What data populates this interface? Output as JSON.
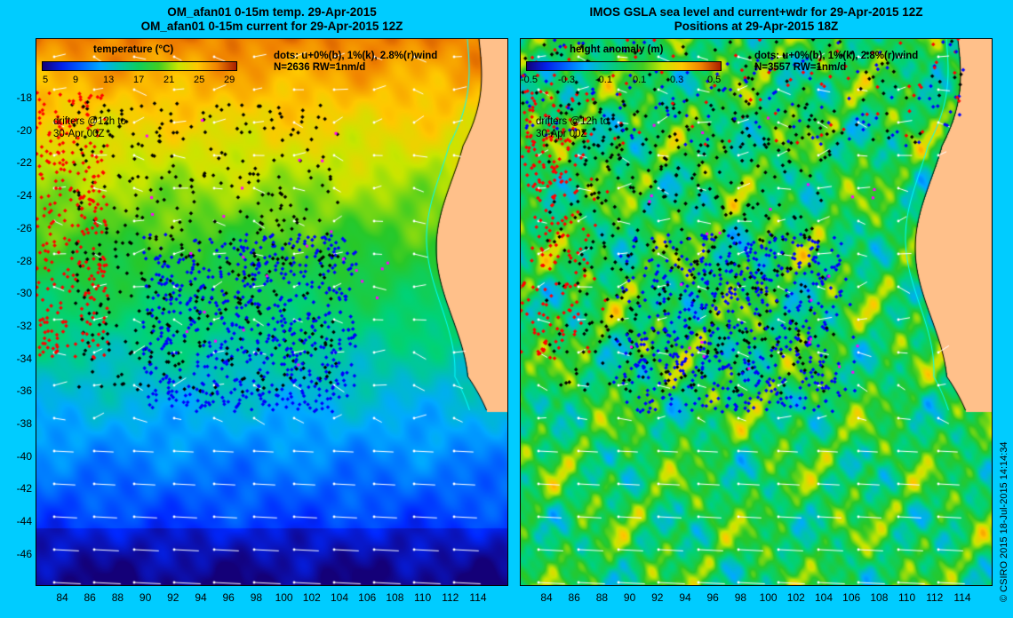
{
  "left_panel": {
    "title_line1": "OM_afan01 0-15m temp. 29-Apr-2015",
    "title_line2": "OM_afan01 0-15m current for 29-Apr-2015 12Z",
    "scale_title": "temperature (°C)",
    "scale_ticks": [
      "5",
      "9",
      "13",
      "17",
      "21",
      "25",
      "29"
    ],
    "note_line1": "dots: u+0%(b), 1%(k), 2.8%(r)wind",
    "note_line2": "N=2636 RW=1nm/d",
    "drifter_line1": "drifters @12h to",
    "drifter_line2": "30-Apr 00Z"
  },
  "right_panel": {
    "title_line1": "IMOS GSLA sea level and current+wdr for 29-Apr-2015 12Z",
    "title_line2": "Positions at 29-Apr-2015 18Z",
    "scale_title": "height anomaly (m)",
    "scale_ticks": [
      "-0.5",
      "-0.3",
      "-0.1",
      "0.1",
      "0.3",
      "0.5"
    ],
    "note_line1": "dots: u+0%(b), 1%(k), 2.8%(r)wind",
    "note_line2": "N=3557 RW=1nm/d",
    "drifter_line1": "drifters @12h to",
    "drifter_line2": "30-Apr 00Z"
  },
  "axes": {
    "lat_labels": [
      "-18",
      "-20",
      "-22",
      "-24",
      "-26",
      "-28",
      "-30",
      "-32",
      "-34",
      "-36",
      "-38",
      "-40",
      "-42",
      "-44",
      "-46"
    ],
    "lon_labels": [
      "84",
      "86",
      "88",
      "90",
      "92",
      "94",
      "96",
      "98",
      "100",
      "102",
      "104",
      "106",
      "108",
      "110",
      "112",
      "114"
    ]
  },
  "credit": "© CSIRO 2015   18-Jul-2015 14:14:34",
  "colors": {
    "background": "#00ccff",
    "land": "#ffc08a",
    "coast": "#000000",
    "dot_blue": "#0000ff",
    "dot_black": "#000000",
    "dot_red": "#ff0000",
    "arrow": "#ffffff"
  }
}
